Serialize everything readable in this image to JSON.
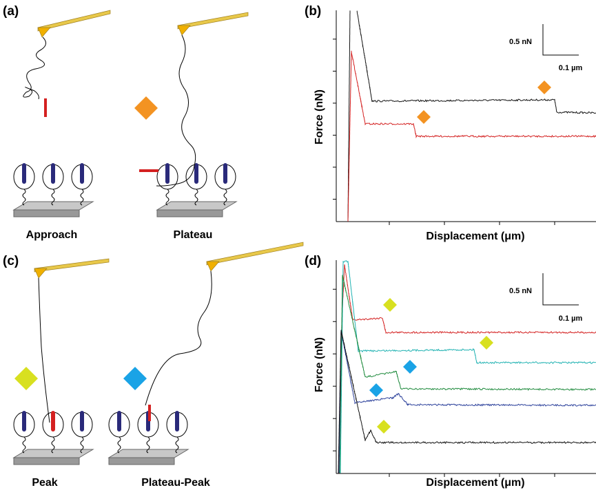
{
  "panels": [
    {
      "label": "(a)",
      "captions": [
        "Approach",
        "Plateau"
      ]
    },
    {
      "label": "(b)",
      "y_label": "Force (nN)",
      "x_label": "Displacement (μm)",
      "scale_force": "0.5 nN",
      "scale_disp": "0.1 µm"
    },
    {
      "label": "(c)",
      "captions": [
        "Peak",
        "Plateau-Peak"
      ]
    },
    {
      "label": "(d)",
      "y_label": "Force (nN)",
      "x_label": "Displacement (μm)",
      "scale_force": "0.5 nN",
      "scale_disp": "0.1 µm"
    }
  ]
}
